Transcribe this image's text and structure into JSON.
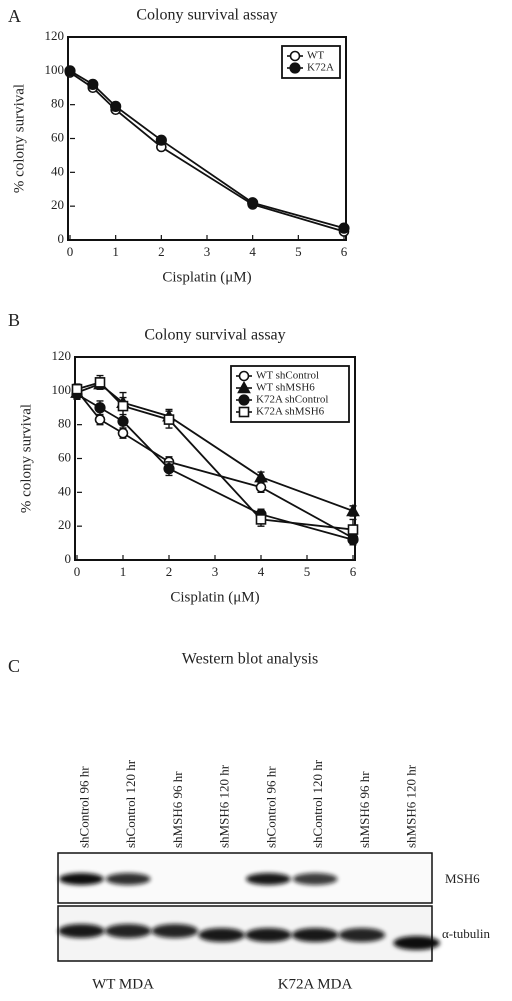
{
  "chart_data": [
    {
      "type": "line",
      "panel": "A",
      "title": "Colony survival assay",
      "xlabel": "Cisplatin (μM)",
      "ylabel": "% colony survival",
      "x": [
        0,
        0.5,
        1,
        2,
        4,
        6
      ],
      "xlim": [
        0,
        6
      ],
      "xticks": [
        0,
        1,
        2,
        3,
        4,
        5,
        6
      ],
      "ylim": [
        0,
        120
      ],
      "yticks": [
        0,
        20,
        40,
        60,
        80,
        100,
        120
      ],
      "legend": "upper right",
      "series": [
        {
          "name": "WT",
          "color": "#111111",
          "marker": "open-circle",
          "values": [
            99,
            90,
            77,
            55,
            21,
            5
          ]
        },
        {
          "name": "K72A",
          "color": "#111111",
          "marker": "filled-circle",
          "values": [
            100,
            92,
            79,
            59,
            22,
            7
          ]
        }
      ]
    },
    {
      "type": "line",
      "panel": "B",
      "title": "Colony survival assay",
      "xlabel": "Cisplatin (μM)",
      "ylabel": "% colony survival",
      "x": [
        0,
        0.5,
        1,
        2,
        4,
        6
      ],
      "xlim": [
        0,
        6
      ],
      "xticks": [
        0,
        1,
        2,
        3,
        4,
        5,
        6
      ],
      "ylim": [
        0,
        120
      ],
      "yticks": [
        0,
        20,
        40,
        60,
        80,
        100,
        120
      ],
      "legend": "upper right",
      "series": [
        {
          "name": "WT shControl",
          "color": "#111111",
          "marker": "open-circle",
          "values": [
            100,
            83,
            75,
            58,
            43,
            13
          ],
          "errors": [
            3,
            3,
            3,
            3,
            3,
            3
          ]
        },
        {
          "name": "WT shMSH6",
          "color": "#111111",
          "marker": "filled-triangle",
          "values": [
            99,
            104,
            93,
            85,
            49,
            29
          ],
          "errors": [
            3,
            3,
            3,
            4,
            3,
            3
          ]
        },
        {
          "name": "K72A shControl",
          "color": "#111111",
          "marker": "filled-circle",
          "values": [
            98,
            90,
            82,
            54,
            27,
            12
          ],
          "errors": [
            3,
            4,
            4,
            4,
            3,
            3
          ]
        },
        {
          "name": "K72A shMSH6",
          "color": "#111111",
          "marker": "open-square",
          "values": [
            101,
            105,
            91,
            83,
            24,
            18
          ],
          "errors": [
            3,
            4,
            8,
            5,
            4,
            6
          ]
        }
      ]
    }
  ],
  "western_blot": {
    "panel": "C",
    "title": "Western blot analysis",
    "lanes": [
      "shControl 96 hr",
      "shControl  120 hr",
      "shMSH6 96 hr",
      "shMSH6 120 hr",
      "shControl 96 hr",
      "shControl 120 hr",
      "shMSH6 96 hr",
      "shMSH6 120 hr"
    ],
    "rows": [
      "MSH6",
      "α-tubulin"
    ],
    "groups": [
      "WT MDA",
      "K72A MDA"
    ]
  }
}
